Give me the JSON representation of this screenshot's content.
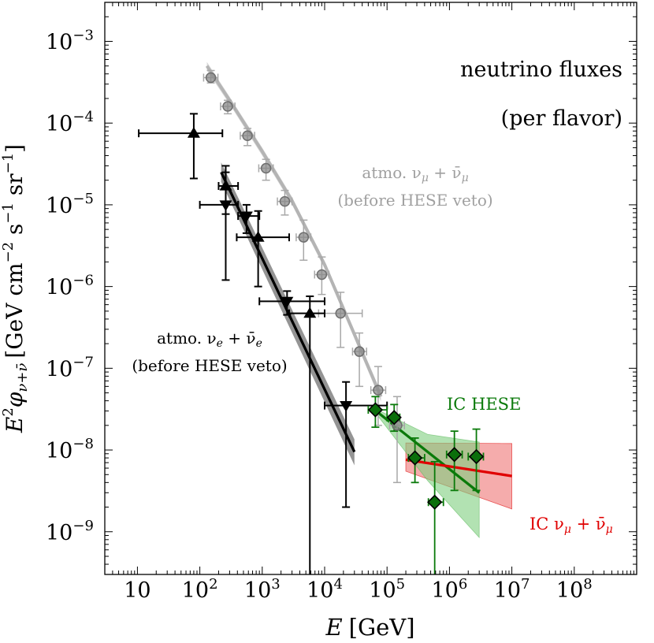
{
  "chart_data": {
    "type": "scatter",
    "title": "neutrino fluxes",
    "subtitle": "(per flavor)",
    "xlabel_base": "E",
    "xlabel_unit": "[GeV]",
    "ylabel_base": "E",
    "ylabel_sup": "2",
    "ylabel_phi": "φ",
    "ylabel_sub": "ν+ν̄",
    "ylabel_unit_a": "[GeV cm",
    "ylabel_unit_b": " s",
    "ylabel_unit_c": " sr",
    "ylabel_unit_close": "]",
    "ylabel_exp": "−2",
    "ylabel_exp1": "−1",
    "xscale": "log",
    "yscale": "log",
    "xlim": [
      3,
      1000000000
    ],
    "ylim": [
      3e-10,
      0.003
    ],
    "x_ticks": [
      {
        "value": 10,
        "base": "10",
        "exp": ""
      },
      {
        "value": 100,
        "base": "10",
        "exp": "2"
      },
      {
        "value": 1000,
        "base": "10",
        "exp": "3"
      },
      {
        "value": 10000,
        "base": "10",
        "exp": "4"
      },
      {
        "value": 100000,
        "base": "10",
        "exp": "5"
      },
      {
        "value": 1000000,
        "base": "10",
        "exp": "6"
      },
      {
        "value": 10000000,
        "base": "10",
        "exp": "7"
      },
      {
        "value": 100000000,
        "base": "10",
        "exp": "8"
      }
    ],
    "y_ticks": [
      {
        "value": 0.001,
        "base": "10",
        "exp": "−3"
      },
      {
        "value": 0.0001,
        "base": "10",
        "exp": "−4"
      },
      {
        "value": 1e-05,
        "base": "10",
        "exp": "−5"
      },
      {
        "value": 1e-06,
        "base": "10",
        "exp": "−6"
      },
      {
        "value": 1e-07,
        "base": "10",
        "exp": "−7"
      },
      {
        "value": 1e-08,
        "base": "10",
        "exp": "−8"
      },
      {
        "value": 1e-09,
        "base": "10",
        "exp": "−9"
      }
    ],
    "labels": {
      "atmo_mu": "atmo. ν",
      "atmo_mu_sub": "μ",
      "atmo_mu_plus": " + ν̄",
      "atmo_mu_note": "(before HESE veto)",
      "atmo_e": "atmo. ν",
      "atmo_e_sub": "e",
      "atmo_e_plus": " + ν̄",
      "atmo_e_note": "(before HESE veto)",
      "ic_hese": "IC HESE",
      "ic_numu": "IC ν",
      "ic_numu_sub": "μ",
      "ic_numu_plus": " + ν̄"
    },
    "colors": {
      "black": "#000000",
      "gray_line": "#b4b4b4",
      "gray_err": "#a8a8a8",
      "gray_marker": "#8a8a8a",
      "green": "#0a7a0a",
      "green_band": "#7fcf7f",
      "green_marker": "#0b6f0b",
      "red": "#e00000",
      "red_band": "#f08080"
    },
    "series": [
      {
        "name": "atmo. numu (before HESE veto) data",
        "marker": "circle",
        "color": "gray",
        "points": [
          {
            "x": 150,
            "y": 0.00036,
            "xlo": 115,
            "xhi": 195,
            "ylo": 0.00031,
            "yhi": 0.00044
          },
          {
            "x": 280,
            "y": 0.00016,
            "xlo": 215,
            "xhi": 365,
            "ylo": 0.00013,
            "yhi": 0.00019
          },
          {
            "x": 580,
            "y": 7e-05,
            "xlo": 445,
            "xhi": 755,
            "ylo": 5.3e-05,
            "yhi": 8.6e-05
          },
          {
            "x": 1150,
            "y": 2.8e-05,
            "xlo": 880,
            "xhi": 1500,
            "ylo": 2e-05,
            "yhi": 3.6e-05
          },
          {
            "x": 2300,
            "y": 1.1e-05,
            "xlo": 1750,
            "xhi": 3000,
            "ylo": 7.5e-06,
            "yhi": 1.5e-05
          },
          {
            "x": 4600,
            "y": 4e-06,
            "xlo": 3500,
            "xhi": 6000,
            "ylo": 2.1e-06,
            "yhi": 6.5e-06
          },
          {
            "x": 9000,
            "y": 1.4e-06,
            "xlo": 6900,
            "xhi": 11700,
            "ylo": 8e-07,
            "yhi": 2.3e-06
          },
          {
            "x": 18000,
            "y": 4.7e-07,
            "xlo": 8000,
            "xhi": 40000,
            "ylo": 1.8e-07,
            "yhi": 8.5e-07
          },
          {
            "x": 36000,
            "y": 1.6e-07,
            "xlo": 28000,
            "xhi": 47000,
            "ylo": 6e-08,
            "yhi": 2.7e-07
          },
          {
            "x": 72000,
            "y": 5.4e-08,
            "xlo": 55000,
            "xhi": 95000,
            "ylo": 2e-08,
            "yhi": 1.05e-07
          },
          {
            "x": 145000,
            "y": 2e-08,
            "xlo": 110000,
            "xhi": 190000,
            "ylo": 4e-09,
            "yhi": 4.5e-08
          }
        ]
      },
      {
        "name": "atmo. nue (before HESE veto) data, triangles up",
        "marker": "triangle-up",
        "color": "black",
        "points": [
          {
            "x": 80,
            "y": 7.5e-05,
            "xlo": 10.5,
            "xhi": 230,
            "ylo": 2.1e-05,
            "yhi": 0.00013
          },
          {
            "x": 260,
            "y": 1.7e-05,
            "xlo": 200,
            "xhi": 410,
            "ylo": 7.7e-06,
            "yhi": 3e-05
          },
          {
            "x": 860,
            "y": 4e-06,
            "xlo": 390,
            "xhi": 2700,
            "ylo": 1e-06,
            "yhi": 8.4e-06
          },
          {
            "x": 5800,
            "y": 4.7e-07,
            "xlo": 2700,
            "xhi": 10000,
            "ylo": 3e-10,
            "yhi": 7.6e-07
          }
        ]
      },
      {
        "name": "atmo. nue (before HESE veto) data, triangles down",
        "marker": "triangle-down",
        "color": "black",
        "points": [
          {
            "x": 260,
            "y": 1e-05,
            "xlo": 100,
            "xhi": 410,
            "ylo": 1.2e-06,
            "yhi": 2.5e-05
          },
          {
            "x": 560,
            "y": 7.3e-06,
            "xlo": 410,
            "xhi": 900,
            "ylo": 4.5e-06,
            "yhi": 1e-05
          },
          {
            "x": 2500,
            "y": 6.6e-07,
            "xlo": 900,
            "xhi": 10000,
            "ylo": 4.5e-07,
            "yhi": 8.8e-07
          },
          {
            "x": 22000,
            "y": 3.5e-08,
            "xlo": 10000,
            "xhi": 100000,
            "ylo": 2e-09,
            "yhi": 6.8e-08
          }
        ]
      },
      {
        "name": "IC HESE data",
        "marker": "diamond",
        "color": "green",
        "points": [
          {
            "x": 65000,
            "y": 3.1e-08,
            "xlo": 50000,
            "xhi": 100000,
            "ylo": 1.9e-08,
            "yhi": 4.5e-08
          },
          {
            "x": 130000,
            "y": 2.5e-08,
            "xlo": 100000,
            "xhi": 160000,
            "ylo": 1.7e-08,
            "yhi": 3.6e-08
          },
          {
            "x": 280000,
            "y": 8e-09,
            "xlo": 220000,
            "xhi": 400000,
            "ylo": 4e-09,
            "yhi": 1.4e-08
          },
          {
            "x": 580000,
            "y": 2.3e-09,
            "xlo": 460000,
            "xhi": 800000,
            "ylo": 3e-10,
            "yhi": 7.2e-09
          },
          {
            "x": 1200000,
            "y": 8.8e-09,
            "xlo": 900000,
            "xhi": 1600000,
            "ylo": 3.2e-09,
            "yhi": 1.7e-08
          },
          {
            "x": 2700000,
            "y": 8.3e-09,
            "xlo": 2000000,
            "xhi": 3500000,
            "ylo": 3.2e-09,
            "yhi": 1.8e-08
          }
        ]
      }
    ],
    "curves": [
      {
        "name": "atmo. numu model",
        "color": "gray",
        "x": [
          130,
          300,
          1000,
          3000,
          10000,
          30000,
          80000
        ],
        "y": [
          0.0005,
          0.00019,
          4.5e-05,
          1.12e-05,
          1.85e-06,
          2.6e-07,
          4.5e-08
        ]
      },
      {
        "name": "atmo. nue model",
        "color": "black",
        "x": [
          220,
          30000
        ],
        "y": [
          2.5e-05,
          9.5e-09
        ]
      },
      {
        "name": "IC HESE fit",
        "color": "green",
        "x": [
          60000,
          3000000
        ],
        "y": [
          3.2e-08,
          3e-09
        ]
      },
      {
        "name": "IC numu fit",
        "color": "red",
        "x": [
          200000,
          10000000
        ],
        "y": [
          7.6e-09,
          4.8e-09
        ]
      }
    ],
    "bands": [
      {
        "name": "atmo. nue model band",
        "color": "gray-dark",
        "x": [
          220,
          30000
        ],
        "ylo": [
          1.9e-05,
          6.5e-09
        ],
        "yhi": [
          3.3e-05,
          1.35e-08
        ]
      },
      {
        "name": "atmo. numu model band",
        "color": "gray-light",
        "x": [
          130,
          300,
          1000,
          3000,
          10000,
          30000,
          80000
        ],
        "ylo": [
          0.00044,
          0.00017,
          4e-05,
          1e-05,
          1.65e-06,
          2.3e-07,
          3.9e-08
        ],
        "yhi": [
          0.00056,
          0.00021,
          5e-05,
          1.25e-05,
          2.05e-06,
          2.9e-07,
          5.1e-08
        ]
      },
      {
        "name": "IC numu band",
        "color": "red",
        "x": [
          200000,
          10000000
        ],
        "ylo": [
          5.5e-09,
          1.9e-09
        ],
        "yhi": [
          1.22e-08,
          1.2e-08
        ]
      },
      {
        "name": "IC HESE band",
        "color": "green",
        "polygon": [
          [
            60000,
            3.3e-08
          ],
          [
            450000,
            1.55e-08
          ],
          [
            3000000,
            1.25e-08
          ],
          [
            3000000,
            8.5e-10
          ],
          [
            450000,
            4.2e-09
          ],
          [
            60000,
            3.1e-08
          ]
        ]
      }
    ]
  }
}
